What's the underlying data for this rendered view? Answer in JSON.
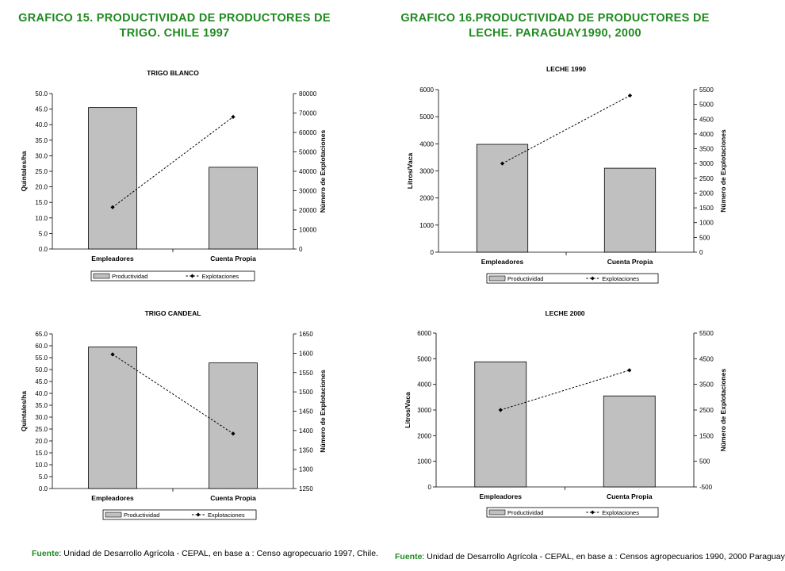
{
  "headings": {
    "left_line1": "GRAFICO 15. PRODUCTIVIDAD DE PRODUCTORES DE",
    "left_line2": "TRIGO. CHILE 1997",
    "right_line1": "GRAFICO 16.PRODUCTIVIDAD DE PRODUCTORES DE",
    "right_line2": "LECHE. PARAGUAY1990, 2000"
  },
  "sources": {
    "left_label": "Fuente",
    "left_text": ": Unidad de Desarrollo Agrícola - CEPAL, en base a : Censo agropecuario 1997, Chile.",
    "right_label": "Fuente",
    "right_text": ": Unidad de Desarrollo Agrícola - CEPAL, en base a : Censos agropecuarios 1990, 2000 Paraguay"
  },
  "colors": {
    "heading": "#1f8a1f",
    "bar": "#c0c0c0",
    "bar_stroke": "#000000",
    "line": "#000000"
  },
  "chart_data": [
    {
      "type": "bar",
      "title": "TRIGO BLANCO",
      "categories": [
        "Empleadores",
        "Cuenta Propia"
      ],
      "ylabel": "Quintales/ha",
      "y2label": "Número de Explotaciones",
      "ylim": [
        0,
        50
      ],
      "yticks": [
        "0.0",
        "5.0",
        "10.0",
        "15.0",
        "20.0",
        "25.0",
        "30.0",
        "35.0",
        "40.0",
        "45.0",
        "50.0"
      ],
      "y2lim": [
        0,
        80000
      ],
      "y2ticks": [
        "0",
        "10000",
        "20000",
        "30000",
        "40000",
        "50000",
        "60000",
        "70000",
        "80000"
      ],
      "series": [
        {
          "name": "Productividad",
          "type": "bar",
          "axis": "left",
          "values": [
            45.5,
            26.3
          ]
        },
        {
          "name": "Explotaciones",
          "type": "line",
          "axis": "right",
          "values": [
            21500,
            68000
          ]
        }
      ],
      "legend": "bottom"
    },
    {
      "type": "bar",
      "title": "LECHE 1990",
      "categories": [
        "Empleadores",
        "Cuenta Propia"
      ],
      "ylabel": "Litros/Vaca",
      "y2label": "Número de Explotaciones",
      "ylim": [
        0,
        6000
      ],
      "yticks": [
        "0",
        "1000",
        "2000",
        "3000",
        "4000",
        "5000",
        "6000"
      ],
      "y2lim": [
        0,
        5500
      ],
      "y2ticks": [
        "0",
        "500",
        "1000",
        "1500",
        "2000",
        "2500",
        "3000",
        "3500",
        "4000",
        "4500",
        "5000",
        "5500"
      ],
      "series": [
        {
          "name": "Productividad",
          "type": "bar",
          "axis": "left",
          "values": [
            3980,
            3100
          ]
        },
        {
          "name": "Explotaciones",
          "type": "line",
          "axis": "right",
          "values": [
            3000,
            5300
          ]
        }
      ],
      "legend": "bottom"
    },
    {
      "type": "bar",
      "title": "TRIGO CANDEAL",
      "categories": [
        "Empleadores",
        "Cuenta Propia"
      ],
      "ylabel": "Quintales/ha",
      "y2label": "Número de Explotaciones",
      "ylim": [
        0,
        65
      ],
      "yticks": [
        "0.0",
        "5.0",
        "10.0",
        "15.0",
        "20.0",
        "25.0",
        "30.0",
        "35.0",
        "40.0",
        "45.0",
        "50.0",
        "55.0",
        "60.0",
        "65.0"
      ],
      "y2lim": [
        1250,
        1650
      ],
      "y2ticks": [
        "1250",
        "1300",
        "1350",
        "1400",
        "1450",
        "1500",
        "1550",
        "1600",
        "1650"
      ],
      "series": [
        {
          "name": "Productividad",
          "type": "bar",
          "axis": "left",
          "values": [
            59.5,
            52.8
          ]
        },
        {
          "name": "Explotaciones",
          "type": "line",
          "axis": "right",
          "values": [
            1597,
            1392
          ]
        }
      ],
      "legend": "bottom"
    },
    {
      "type": "bar",
      "title": "LECHE 2000",
      "categories": [
        "Empleadores",
        "Cuenta Propia"
      ],
      "ylabel": "Litros/Vaca",
      "y2label": "Número de Explotaciones",
      "ylim": [
        0,
        6000
      ],
      "yticks": [
        "0",
        "1000",
        "2000",
        "3000",
        "4000",
        "5000",
        "6000"
      ],
      "y2lim": [
        -500,
        5500
      ],
      "y2ticks": [
        "-500",
        "500",
        "1500",
        "2500",
        "3500",
        "4500",
        "5500"
      ],
      "series": [
        {
          "name": "Productividad",
          "type": "bar",
          "axis": "left",
          "values": [
            4880,
            3550
          ]
        },
        {
          "name": "Explotaciones",
          "type": "line",
          "axis": "right",
          "values": [
            2500,
            4050
          ]
        }
      ],
      "legend": "bottom"
    }
  ]
}
